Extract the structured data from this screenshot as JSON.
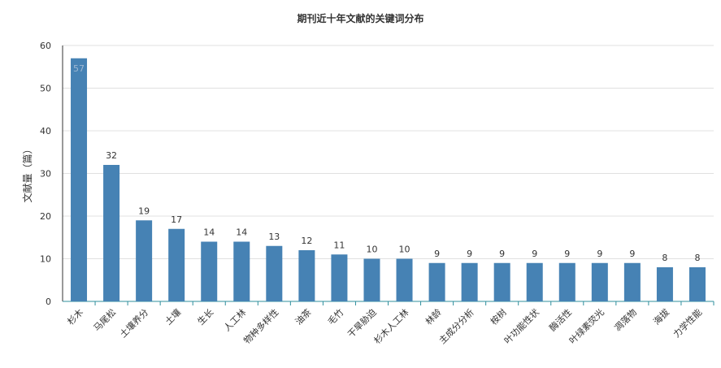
{
  "chart_data": {
    "type": "bar",
    "title": "期刊近十年文献的关键词分布",
    "ylabel": "文献量（篇）",
    "xlabel": "",
    "ylim": [
      0,
      60
    ],
    "yticks": [
      0,
      10,
      20,
      30,
      40,
      50,
      60
    ],
    "grid": true,
    "legend": "none",
    "bar_color": "#4682b4",
    "categories": [
      "杉木",
      "马尾松",
      "土壤养分",
      "土壤",
      "生长",
      "人工林",
      "物种多样性",
      "油茶",
      "毛竹",
      "干旱胁迫",
      "杉木人工林",
      "林龄",
      "主成分分析",
      "桉树",
      "叶功能性状",
      "酶活性",
      "叶绿素荧光",
      "凋落物",
      "海拔",
      "力学性能"
    ],
    "values": [
      57,
      32,
      19,
      17,
      14,
      14,
      13,
      12,
      11,
      10,
      10,
      9,
      9,
      9,
      9,
      9,
      9,
      9,
      8,
      8
    ]
  }
}
